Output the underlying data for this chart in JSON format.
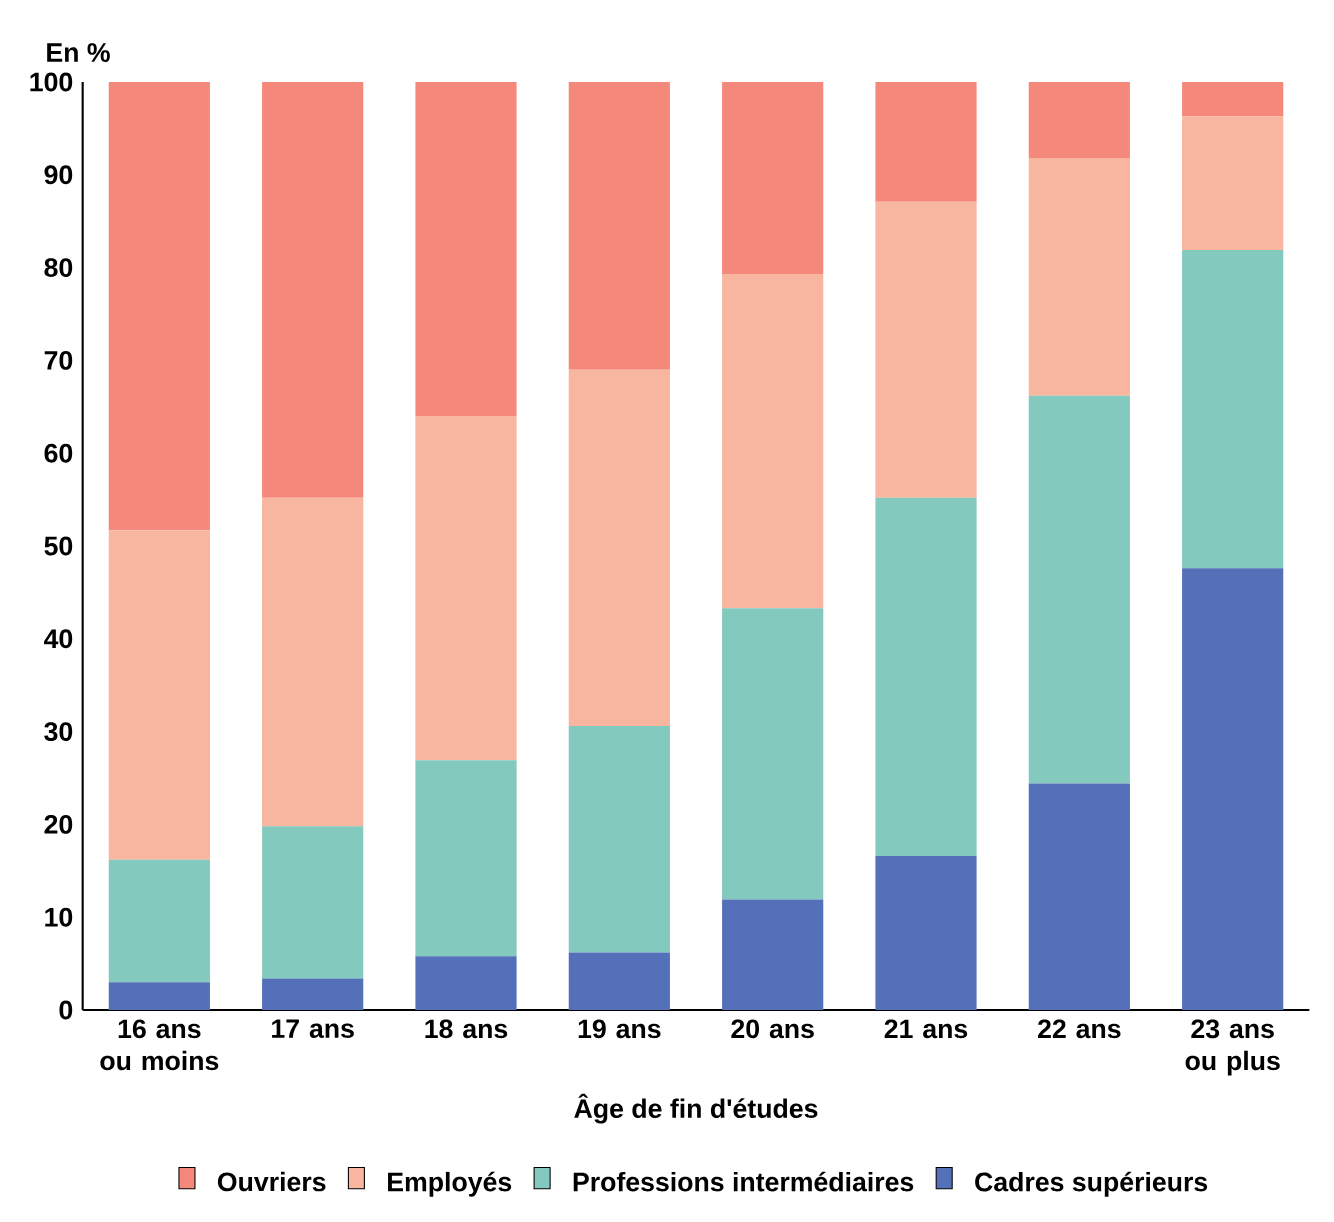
{
  "chart_data": {
    "type": "bar",
    "stacked": true,
    "ylabel": "En %",
    "xlabel": "Âge de fin d'études",
    "categories": [
      "16 ans ou moins",
      "17 ans",
      "18 ans",
      "19 ans",
      "20 ans",
      "21 ans",
      "22 ans",
      "23 ans ou plus"
    ],
    "series": [
      {
        "name": "Cadres supérieurs",
        "color": "#5470b8",
        "values": [
          3.0,
          3.4,
          5.8,
          6.2,
          11.9,
          16.6,
          24.4,
          47.6
        ]
      },
      {
        "name": "Professions intermédiaires",
        "color": "#84c9be",
        "values": [
          13.2,
          16.4,
          21.1,
          24.4,
          31.4,
          38.6,
          41.8,
          34.3
        ]
      },
      {
        "name": "Employés",
        "color": "#f8b59f",
        "values": [
          35.5,
          35.4,
          37.1,
          38.4,
          36.0,
          31.9,
          25.6,
          14.4
        ]
      },
      {
        "name": "Ouvriers",
        "color": "#f4897b",
        "values": [
          48.3,
          44.8,
          36.0,
          31.0,
          20.7,
          12.9,
          8.2,
          3.7
        ]
      }
    ],
    "ylim": [
      0,
      100
    ],
    "yticks": [
      0,
      10,
      20,
      30,
      40,
      50,
      60,
      70,
      80,
      90,
      100
    ],
    "legend": "bottom"
  }
}
